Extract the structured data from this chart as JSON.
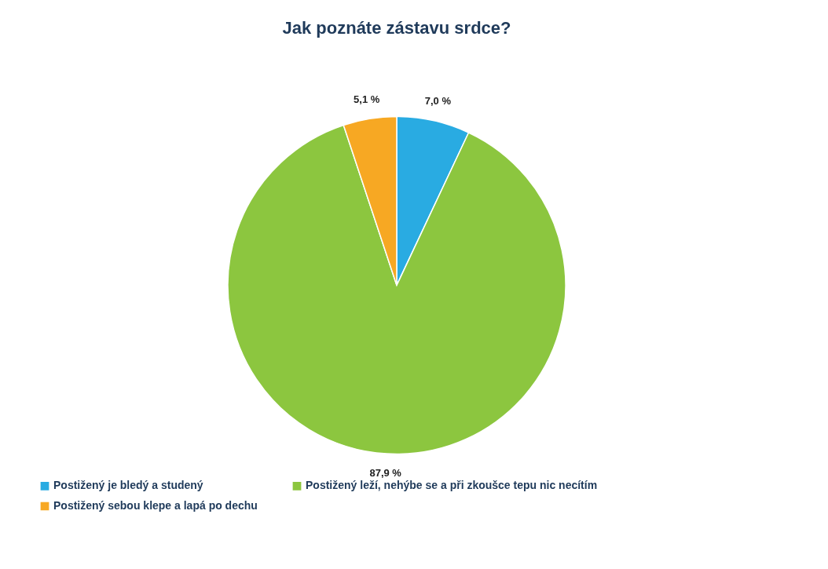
{
  "chart_data": {
    "type": "pie",
    "title": "Jak poznáte zástavu srdce?",
    "categories": [
      "Postižený je bledý a studený",
      "Postižený leží, nehýbe se a při zkoušce tepu nic necítím",
      "Postižený sebou klepe a lapá po dechu"
    ],
    "values": [
      7.0,
      87.9,
      5.1
    ],
    "colors": [
      "#29abe2",
      "#8cc63f",
      "#f7a823"
    ],
    "value_labels": [
      "7,0 %",
      "87,9 %",
      "5,1 %"
    ],
    "legend": "bottom left"
  }
}
